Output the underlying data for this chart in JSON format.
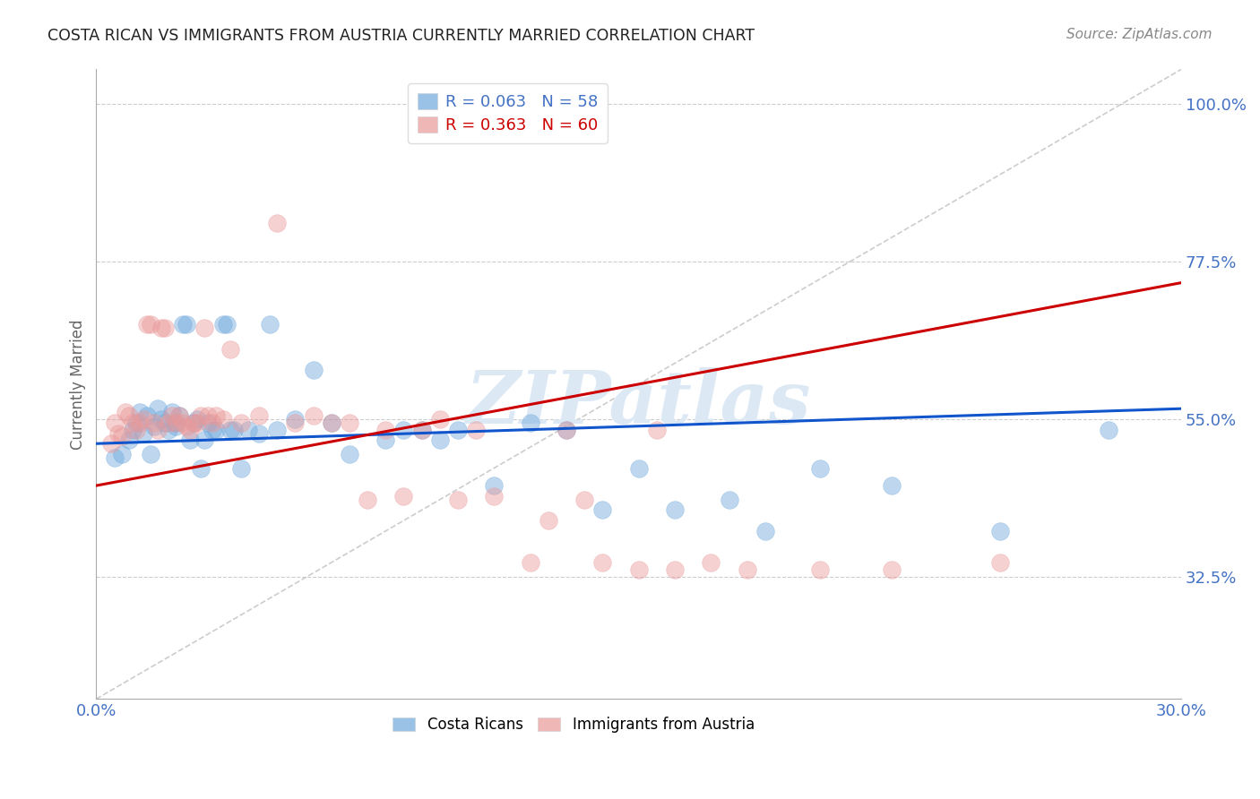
{
  "title": "COSTA RICAN VS IMMIGRANTS FROM AUSTRIA CURRENTLY MARRIED CORRELATION CHART",
  "source": "Source: ZipAtlas.com",
  "ylabel": "Currently Married",
  "yticks": [
    0.325,
    0.55,
    0.775,
    1.0
  ],
  "ytick_labels": [
    "32.5%",
    "55.0%",
    "77.5%",
    "100.0%"
  ],
  "xmin": 0.0,
  "xmax": 0.3,
  "ymin": 0.15,
  "ymax": 1.05,
  "blue_scatter_x": [
    0.005,
    0.007,
    0.009,
    0.01,
    0.011,
    0.012,
    0.013,
    0.014,
    0.015,
    0.016,
    0.017,
    0.018,
    0.019,
    0.02,
    0.021,
    0.022,
    0.022,
    0.023,
    0.024,
    0.025,
    0.026,
    0.027,
    0.028,
    0.029,
    0.03,
    0.031,
    0.032,
    0.033,
    0.035,
    0.036,
    0.037,
    0.038,
    0.04,
    0.042,
    0.045,
    0.048,
    0.05,
    0.055,
    0.06,
    0.065,
    0.07,
    0.08,
    0.085,
    0.09,
    0.095,
    0.1,
    0.11,
    0.12,
    0.13,
    0.14,
    0.15,
    0.16,
    0.175,
    0.185,
    0.2,
    0.22,
    0.25,
    0.28
  ],
  "blue_scatter_y": [
    0.495,
    0.5,
    0.52,
    0.535,
    0.545,
    0.56,
    0.53,
    0.555,
    0.5,
    0.54,
    0.565,
    0.55,
    0.545,
    0.535,
    0.56,
    0.545,
    0.54,
    0.555,
    0.685,
    0.685,
    0.52,
    0.545,
    0.55,
    0.48,
    0.52,
    0.545,
    0.535,
    0.535,
    0.685,
    0.685,
    0.535,
    0.535,
    0.48,
    0.535,
    0.53,
    0.685,
    0.535,
    0.55,
    0.62,
    0.545,
    0.5,
    0.52,
    0.535,
    0.535,
    0.52,
    0.535,
    0.455,
    0.545,
    0.535,
    0.42,
    0.48,
    0.42,
    0.435,
    0.39,
    0.48,
    0.455,
    0.39,
    0.535
  ],
  "pink_scatter_x": [
    0.004,
    0.005,
    0.006,
    0.007,
    0.008,
    0.009,
    0.01,
    0.011,
    0.012,
    0.013,
    0.014,
    0.015,
    0.016,
    0.017,
    0.018,
    0.019,
    0.02,
    0.021,
    0.022,
    0.023,
    0.024,
    0.025,
    0.026,
    0.027,
    0.028,
    0.029,
    0.03,
    0.031,
    0.032,
    0.033,
    0.035,
    0.037,
    0.04,
    0.045,
    0.05,
    0.055,
    0.06,
    0.065,
    0.07,
    0.075,
    0.08,
    0.085,
    0.09,
    0.095,
    0.1,
    0.105,
    0.11,
    0.12,
    0.125,
    0.13,
    0.135,
    0.14,
    0.15,
    0.155,
    0.16,
    0.17,
    0.18,
    0.2,
    0.22,
    0.25
  ],
  "pink_scatter_y": [
    0.515,
    0.545,
    0.53,
    0.525,
    0.56,
    0.555,
    0.545,
    0.535,
    0.545,
    0.55,
    0.685,
    0.685,
    0.545,
    0.535,
    0.68,
    0.68,
    0.545,
    0.555,
    0.545,
    0.555,
    0.545,
    0.54,
    0.535,
    0.545,
    0.545,
    0.555,
    0.68,
    0.555,
    0.545,
    0.555,
    0.55,
    0.65,
    0.545,
    0.555,
    0.83,
    0.545,
    0.555,
    0.545,
    0.545,
    0.435,
    0.535,
    0.44,
    0.535,
    0.55,
    0.435,
    0.535,
    0.44,
    0.345,
    0.405,
    0.535,
    0.435,
    0.345,
    0.335,
    0.535,
    0.335,
    0.345,
    0.335,
    0.335,
    0.335,
    0.345
  ],
  "blue_line_x": [
    0.0,
    0.3
  ],
  "blue_line_y": [
    0.515,
    0.565
  ],
  "pink_line_x": [
    0.0,
    0.3
  ],
  "pink_line_y": [
    0.455,
    0.745
  ],
  "diag_line_x": [
    0.0,
    0.3
  ],
  "diag_line_y": [
    0.15,
    1.05
  ],
  "blue_color": "#6fa8dc",
  "pink_color": "#ea9999",
  "blue_line_color": "#1155cc",
  "pink_line_color": "#cc0000",
  "diag_line_color": "#c0c0c0",
  "grid_color": "#c0c0c0",
  "title_color": "#222222",
  "axis_label_color": "#4472c4",
  "watermark": "ZIPatlas",
  "watermark_color": "#dce9f5",
  "legend_r1": "R = 0.063",
  "legend_n1": "N = 58",
  "legend_r2": "R = 0.363",
  "legend_n2": "N = 60",
  "legend_color1": "#4472c4",
  "legend_color2": "#e06c9f",
  "bottom_legend1": "Costa Ricans",
  "bottom_legend2": "Immigrants from Austria"
}
